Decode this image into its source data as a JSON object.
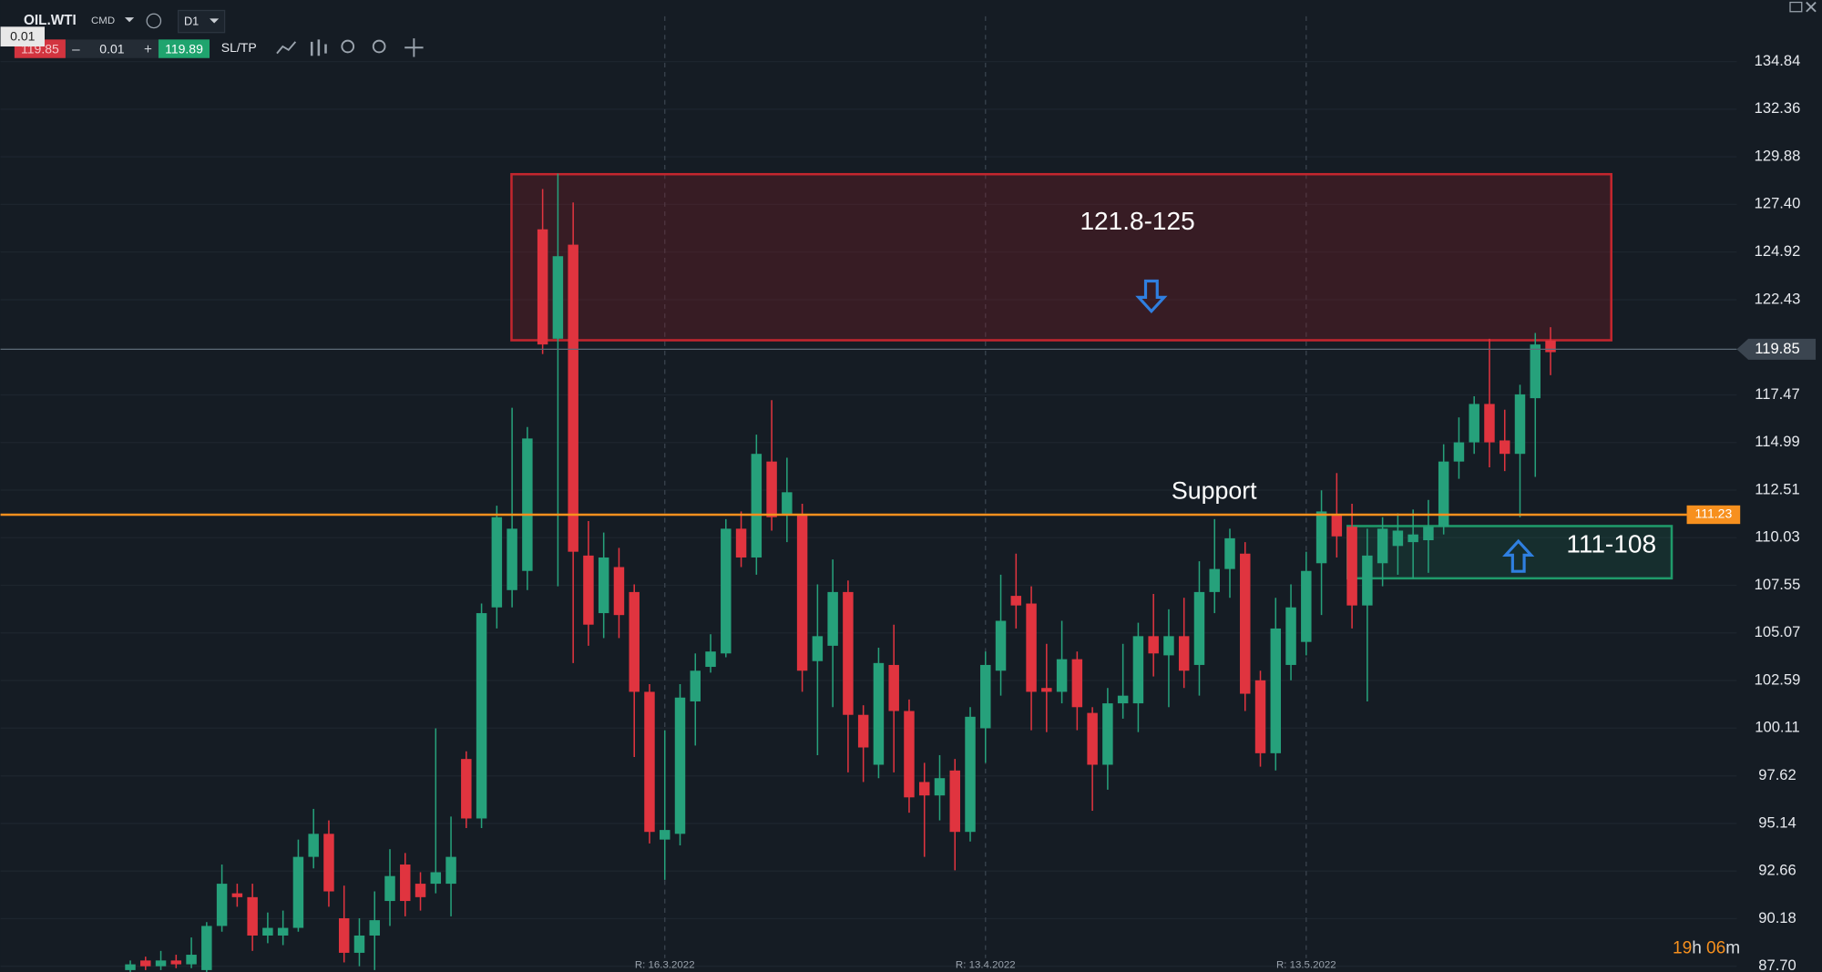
{
  "toolbar": {
    "symbol": "OIL.WTI",
    "market": "CMD",
    "timeframe": "D1",
    "tooltip": "0.01",
    "sell_price": "119.85",
    "lot": "0.01",
    "buy_price": "119.89",
    "sltp": "SL/TP"
  },
  "chart_data": {
    "type": "candlestick",
    "categories": [
      null,
      null,
      null,
      null,
      null,
      null,
      null,
      null,
      null,
      null,
      null,
      null,
      null,
      null,
      null,
      null,
      null,
      null,
      null,
      null,
      null,
      null,
      null,
      null,
      null,
      null,
      null,
      null,
      null,
      null,
      null,
      null,
      null,
      null,
      null,
      "R: 16.3.2022",
      null,
      null,
      null,
      null,
      null,
      null,
      null,
      null,
      null,
      null,
      null,
      null,
      null,
      null,
      null,
      null,
      null,
      null,
      null,
      null,
      "R: 13.4.2022",
      null,
      null,
      null,
      null,
      null,
      null,
      null,
      null,
      null,
      null,
      null,
      null,
      null,
      null,
      null,
      null,
      null,
      null,
      null,
      null,
      "R: 13.5.2022",
      null,
      null,
      null,
      null,
      null,
      null,
      null,
      null,
      null,
      null,
      null,
      null,
      null,
      null,
      null,
      null
    ],
    "open": [
      87.5,
      88.0,
      87.7,
      88.0,
      87.8,
      87.5,
      89.8,
      91.5,
      91.3,
      89.3,
      89.3,
      89.7,
      93.4,
      94.6,
      90.2,
      88.4,
      89.3,
      91.1,
      93.0,
      92.0,
      92.0,
      92.0,
      98.5,
      95.4,
      106.4,
      107.3,
      108.3,
      126.1,
      120.4,
      125.3,
      109.1,
      106.1,
      108.5,
      107.2,
      102.0,
      94.3,
      94.6,
      101.5,
      103.3,
      104.0,
      110.5,
      109.0,
      114.0,
      111.2,
      111.2,
      103.6,
      104.4,
      107.2,
      100.8,
      98.2,
      103.4,
      101.0,
      97.3,
      96.6,
      97.9,
      94.7,
      100.1,
      103.1,
      107.0,
      106.6,
      102.2,
      102.0,
      103.7,
      100.9,
      98.2,
      101.4,
      101.4,
      104.9,
      103.9,
      104.9,
      103.4,
      107.2,
      108.4,
      109.2,
      102.6,
      98.8,
      103.4,
      104.6,
      108.7,
      111.2,
      110.6,
      106.5,
      108.7,
      109.6,
      109.8,
      109.9,
      110.6,
      114.0,
      115.0,
      117.0,
      115.1,
      114.4,
      117.3,
      120.3
    ],
    "high": [
      88.0,
      88.2,
      88.5,
      88.3,
      89.2,
      90.0,
      93.0,
      92.0,
      92.0,
      90.5,
      90.6,
      94.3,
      95.9,
      95.3,
      91.9,
      90.2,
      91.6,
      93.8,
      93.6,
      92.6,
      100.1,
      95.5,
      98.9,
      106.6,
      111.7,
      116.8,
      115.8,
      128.2,
      129.0,
      127.5,
      110.9,
      110.3,
      109.5,
      107.6,
      102.4,
      100.0,
      102.4,
      104.0,
      105.0,
      111.0,
      111.4,
      115.4,
      117.2,
      114.2,
      111.8,
      107.6,
      108.9,
      107.8,
      101.3,
      104.3,
      105.5,
      101.6,
      98.3,
      98.7,
      98.5,
      101.2,
      104.1,
      108.1,
      109.2,
      107.5,
      104.5,
      105.7,
      104.1,
      101.2,
      102.2,
      104.5,
      105.6,
      107.1,
      106.3,
      106.9,
      108.8,
      111.0,
      110.5,
      109.8,
      103.1,
      106.9,
      107.6,
      109.3,
      112.5,
      113.4,
      111.8,
      110.5,
      111.1,
      111.3,
      111.5,
      112.0,
      114.9,
      116.3,
      117.4,
      120.4,
      116.7,
      118.0,
      120.7,
      121.0
    ],
    "low": [
      87.4,
      87.5,
      87.5,
      87.6,
      87.6,
      87.4,
      89.5,
      90.8,
      88.5,
      88.9,
      88.8,
      89.5,
      92.8,
      90.8,
      87.9,
      87.7,
      87.5,
      89.8,
      90.3,
      90.6,
      91.5,
      90.3,
      94.9,
      94.9,
      105.3,
      106.4,
      107.3,
      119.6,
      107.5,
      103.5,
      104.4,
      104.8,
      104.8,
      98.6,
      94.1,
      92.2,
      94.0,
      99.2,
      103.0,
      103.8,
      108.5,
      108.1,
      110.4,
      109.8,
      102.0,
      98.7,
      101.2,
      97.8,
      97.3,
      97.5,
      97.8,
      95.7,
      93.4,
      95.3,
      92.7,
      94.2,
      98.3,
      101.8,
      105.3,
      100.0,
      99.9,
      101.4,
      100.0,
      95.8,
      96.9,
      100.6,
      99.9,
      102.8,
      101.2,
      102.2,
      101.8,
      106.1,
      106.9,
      101.0,
      98.1,
      97.9,
      102.6,
      103.9,
      106.0,
      109.0,
      105.3,
      101.5,
      107.5,
      108.1,
      107.9,
      108.2,
      110.2,
      113.1,
      114.4,
      113.7,
      113.5,
      111.1,
      113.2,
      118.5
    ],
    "close": [
      87.8,
      87.7,
      88.0,
      87.8,
      88.3,
      89.8,
      92.0,
      91.3,
      89.3,
      89.7,
      89.7,
      93.4,
      94.6,
      91.6,
      88.4,
      89.3,
      90.1,
      92.4,
      91.1,
      91.3,
      92.6,
      93.4,
      95.4,
      106.1,
      111.1,
      110.5,
      115.2,
      120.1,
      124.7,
      109.3,
      105.5,
      109.0,
      106.0,
      102.0,
      94.7,
      94.8,
      101.7,
      103.1,
      104.1,
      110.5,
      109.0,
      114.4,
      111.1,
      112.4,
      103.1,
      104.9,
      107.2,
      100.8,
      99.1,
      103.5,
      101.0,
      96.5,
      96.6,
      97.5,
      94.7,
      100.7,
      103.4,
      105.7,
      106.5,
      102.0,
      102.0,
      103.7,
      101.2,
      98.2,
      101.4,
      101.8,
      104.9,
      104.0,
      104.9,
      103.1,
      107.2,
      108.4,
      110.0,
      101.9,
      98.8,
      105.3,
      106.4,
      108.3,
      111.4,
      110.1,
      106.5,
      109.1,
      110.5,
      110.4,
      110.2,
      110.6,
      114.0,
      115.0,
      117.0,
      115.0,
      114.4,
      117.5,
      120.1,
      119.7
    ],
    "ylim": [
      87.4,
      138.05
    ],
    "yticks": [
      134.84,
      132.36,
      129.88,
      {
        "value": 127.4,
        "label": "127.40"
      },
      124.92,
      122.43,
      117.47,
      114.99,
      112.51,
      110.03,
      107.55,
      105.07,
      102.59,
      100.11,
      97.62,
      95.14,
      92.66,
      90.18,
      {
        "value": 87.7,
        "label": "87.70"
      }
    ],
    "up_color": "#26a17b",
    "down_color": "#e0343f",
    "price_line": {
      "value": 119.85,
      "color": "#5d6b78"
    },
    "level_line": {
      "value": 111.23,
      "color": "#f7901e"
    },
    "annotations": {
      "resistance": "121.8-125",
      "support_zone": "111-108",
      "support": "Support"
    }
  },
  "countdown": {
    "hours": "19",
    "h": "h",
    "minutes": "06",
    "m": "m"
  }
}
